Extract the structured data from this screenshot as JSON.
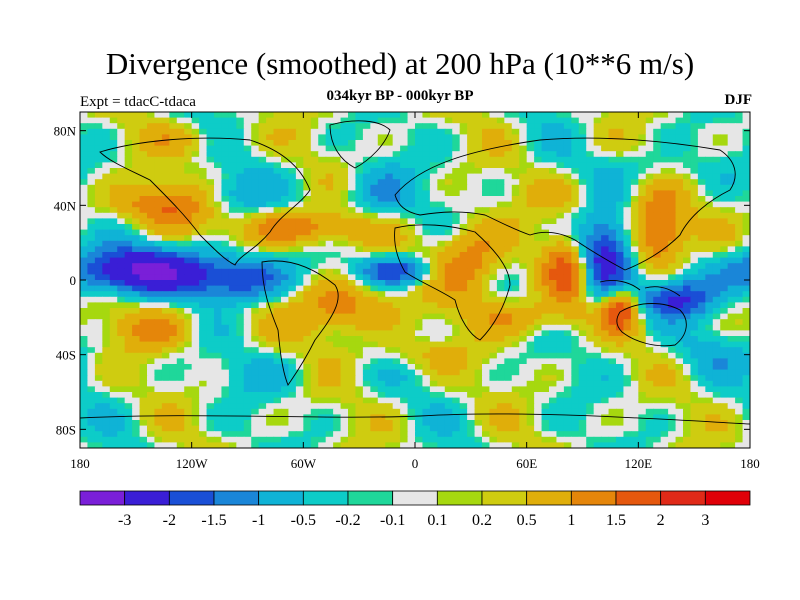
{
  "chart_data": {
    "type": "heatmap",
    "title": "Divergence (smoothed) at 200 hPa (10**6 m/s)",
    "subtitle": "034kyr BP - 000kyr BP",
    "left_label": "Expt = tdacC-tdaca",
    "right_label": "DJF",
    "x_ticks": [
      "180",
      "120W",
      "60W",
      "0",
      "60E",
      "120E",
      "180"
    ],
    "x_values": [
      -180,
      -120,
      -60,
      0,
      60,
      120,
      180
    ],
    "y_ticks": [
      "80N",
      "40N",
      "0",
      "40S",
      "80S"
    ],
    "y_values": [
      80,
      40,
      0,
      -40,
      -80
    ],
    "xlim": [
      -180,
      180
    ],
    "ylim": [
      -90,
      90
    ],
    "colorbar_labels": [
      "-3",
      "-2",
      "-1.5",
      "-1",
      "-0.5",
      "-0.2",
      "-0.1",
      "0.1",
      "0.2",
      "0.5",
      "1",
      "1.5",
      "2",
      "3"
    ],
    "colors": [
      "#7a1fd8",
      "#3a1ed6",
      "#1a4fd6",
      "#1a86d8",
      "#0fb3d6",
      "#0dccc8",
      "#1fd79a",
      "#e6e6e6",
      "#a6d80f",
      "#cfcc10",
      "#e0ae0a",
      "#e5860a",
      "#e5580e",
      "#e02a18",
      "#e00008"
    ],
    "field_blobs": [
      {
        "lon": -150,
        "lat": 5,
        "rx": 40,
        "ry": 12,
        "v": -3
      },
      {
        "lon": -95,
        "lat": 0,
        "rx": 25,
        "ry": 12,
        "v": -2
      },
      {
        "lon": -60,
        "lat": 28,
        "rx": 35,
        "ry": 10,
        "v": 1.5
      },
      {
        "lon": -135,
        "lat": 40,
        "rx": 30,
        "ry": 12,
        "v": 1.5
      },
      {
        "lon": -40,
        "lat": -15,
        "rx": 25,
        "ry": 15,
        "v": 1.5
      },
      {
        "lon": -10,
        "lat": 5,
        "rx": 20,
        "ry": 8,
        "v": -2
      },
      {
        "lon": 30,
        "lat": 10,
        "rx": 20,
        "ry": 20,
        "v": 1.5
      },
      {
        "lon": 85,
        "lat": 5,
        "rx": 15,
        "ry": 18,
        "v": 2
      },
      {
        "lon": 100,
        "lat": 10,
        "rx": 15,
        "ry": 22,
        "v": -3
      },
      {
        "lon": 130,
        "lat": 25,
        "rx": 15,
        "ry": 20,
        "v": 2
      },
      {
        "lon": 140,
        "lat": -10,
        "rx": 20,
        "ry": 10,
        "v": -2
      },
      {
        "lon": 110,
        "lat": -15,
        "rx": 10,
        "ry": 12,
        "v": 2
      },
      {
        "lon": -100,
        "lat": 45,
        "rx": 20,
        "ry": 12,
        "v": -1
      },
      {
        "lon": -20,
        "lat": 45,
        "rx": 20,
        "ry": 15,
        "v": -1
      },
      {
        "lon": -140,
        "lat": -25,
        "rx": 25,
        "ry": 12,
        "v": 1
      },
      {
        "lon": 60,
        "lat": -20,
        "rx": 30,
        "ry": 10,
        "v": 1
      },
      {
        "lon": 130,
        "lat": 60,
        "rx": 30,
        "ry": 10,
        "v": -0.5
      },
      {
        "lon": 0,
        "lat": -40,
        "rx": 30,
        "ry": 8,
        "v": 0.5
      },
      {
        "lon": 80,
        "lat": 45,
        "rx": 20,
        "ry": 10,
        "v": 0.5
      },
      {
        "lon": -80,
        "lat": -50,
        "rx": 25,
        "ry": 10,
        "v": -0.5
      },
      {
        "lon": 160,
        "lat": -40,
        "rx": 25,
        "ry": 12,
        "v": -0.5
      },
      {
        "lon": -120,
        "lat": 75,
        "rx": 30,
        "ry": 8,
        "v": 0.5
      }
    ]
  }
}
